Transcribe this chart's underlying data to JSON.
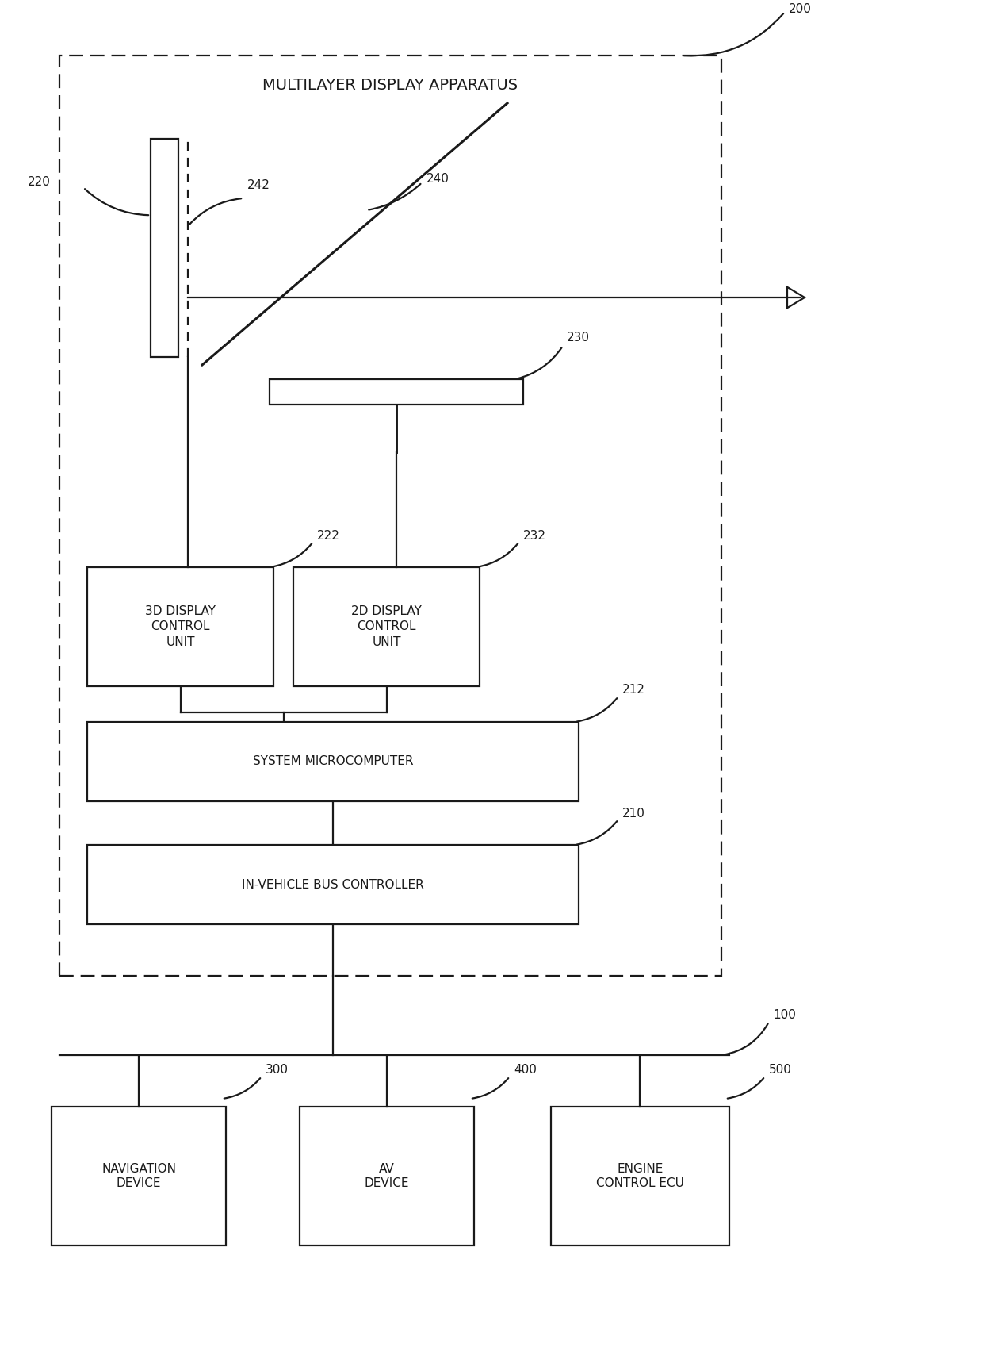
{
  "bg_color": "#ffffff",
  "line_color": "#1a1a1a",
  "fig_width": 12.4,
  "fig_height": 17.03,
  "title": "MULTILAYER DISPLAY APPARATUS",
  "label_200": "200",
  "label_100": "100",
  "label_220": "220",
  "label_240": "240",
  "label_242": "242",
  "label_230": "230",
  "label_222": "222",
  "label_232": "232",
  "label_212": "212",
  "label_210": "210",
  "label_300": "300",
  "label_400": "400",
  "label_500": "500",
  "box_3d": "3D DISPLAY\nCONTROL\nUNIT",
  "box_2d": "2D DISPLAY\nCONTROL\nUNIT",
  "box_micro": "SYSTEM MICROCOMPUTER",
  "box_bus": "IN-VEHICLE BUS CONTROLLER",
  "box_nav": "NAVIGATION\nDEVICE",
  "box_av": "AV\nDEVICE",
  "box_engine": "ENGINE\nCONTROL ECU",
  "font_size_title": 14,
  "font_size_box": 11,
  "font_size_ref": 11
}
